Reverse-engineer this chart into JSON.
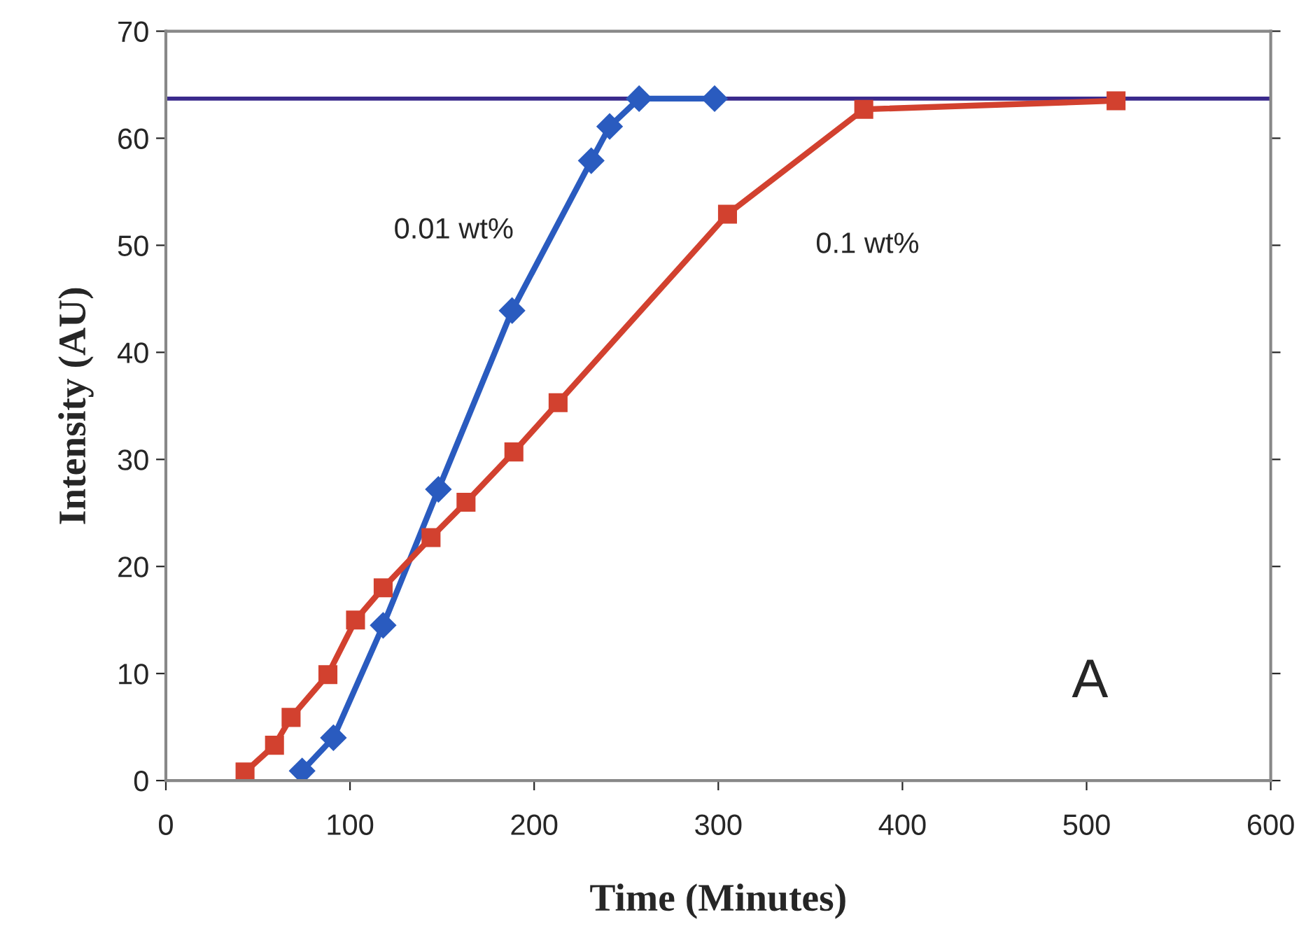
{
  "chart_data": {
    "type": "line",
    "xlabel": "Time (Minutes)",
    "ylabel": "Intensity (AU)",
    "xlim": [
      0,
      600
    ],
    "xticks": [
      0,
      100,
      200,
      300,
      400,
      500,
      600
    ],
    "ylim": [
      0,
      70
    ],
    "yticks": [
      0,
      10,
      20,
      30,
      40,
      50,
      60,
      70
    ],
    "grid": false,
    "line_style": "solid",
    "series": [
      {
        "name": "0.01 wt%",
        "color": "#2a5bbf",
        "marker": "diamond",
        "x": [
          74,
          91,
          118,
          148,
          188,
          231,
          241,
          257,
          298
        ],
        "values": [
          0.9,
          4.0,
          14.5,
          27.2,
          43.9,
          57.9,
          61.1,
          63.7,
          63.7
        ]
      },
      {
        "name": "0.1 wt%",
        "color": "#d2412f",
        "marker": "square",
        "x": [
          43,
          59,
          68,
          88,
          103,
          118,
          144,
          163,
          189,
          213,
          305,
          379,
          516
        ],
        "values": [
          0.8,
          3.3,
          5.9,
          9.9,
          15.0,
          18.0,
          22.7,
          26.0,
          30.7,
          35.3,
          52.9,
          62.7,
          63.5
        ]
      }
    ],
    "ref_lines": [
      {
        "axis": "y",
        "value": 63.7,
        "color": "#3a2a8c",
        "line_style": "solid"
      }
    ],
    "annotations": [
      "A"
    ]
  }
}
